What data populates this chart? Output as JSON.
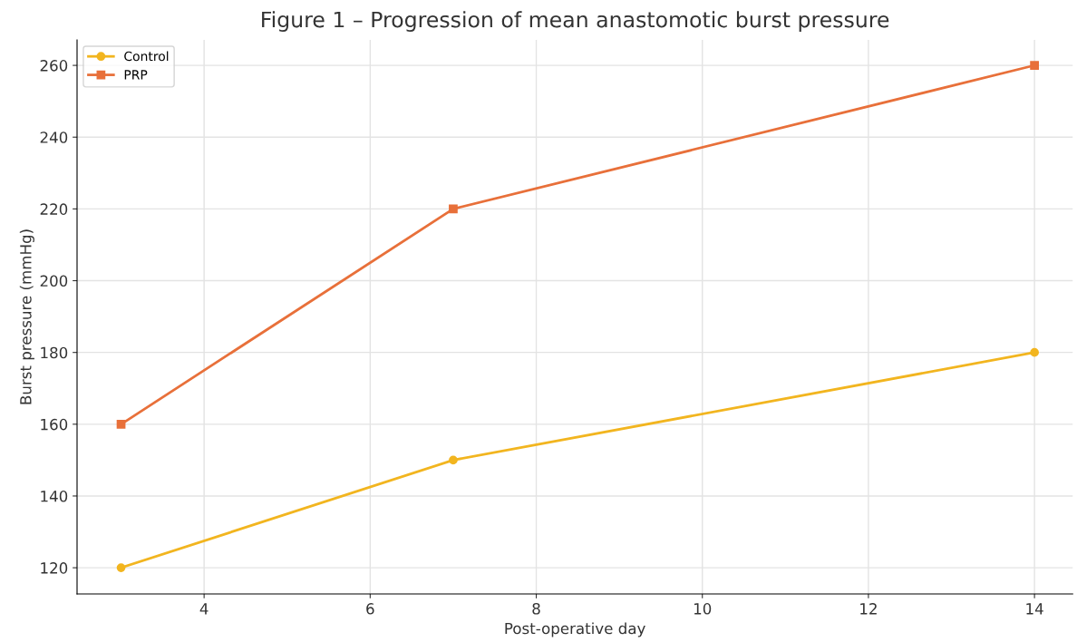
{
  "chart_data": {
    "type": "line",
    "title": "Figure 1 – Progression of mean anastomotic burst pressure",
    "xlabel": "Post-operative day",
    "ylabel": "Burst pressure (mmHg)",
    "x": [
      3,
      7,
      14
    ],
    "series": [
      {
        "name": "Control",
        "color": "#f2b51f",
        "values": [
          120,
          150,
          180
        ],
        "marker": "circle"
      },
      {
        "name": "PRP",
        "color": "#e8703a",
        "values": [
          160,
          220,
          260
        ],
        "marker": "square"
      }
    ],
    "xlim": [
      2.47,
      14.46
    ],
    "ylim": [
      112.7,
      267.1
    ],
    "xticks": [
      4,
      6,
      8,
      10,
      12,
      14
    ],
    "yticks": [
      120,
      140,
      160,
      180,
      200,
      220,
      240,
      260
    ],
    "grid": true,
    "legend": "top left",
    "line_style": "solid"
  }
}
